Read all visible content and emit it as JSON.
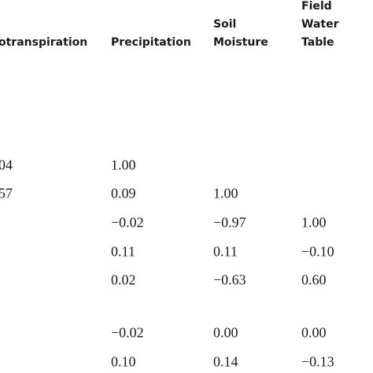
{
  "table": {
    "headers": [
      [
        "otranspiration"
      ],
      [
        "Precipitation"
      ],
      [
        "Soil",
        "Moisture"
      ],
      [
        "Field",
        "Water",
        "Table"
      ]
    ],
    "rows": [
      [
        "04",
        "1.00",
        null,
        null
      ],
      [
        "57",
        "0.09",
        "1.00",
        null
      ],
      [
        null,
        "−0.02",
        "−0.97",
        "1.00"
      ],
      [
        null,
        "0.11",
        "0.11",
        "−0.10"
      ],
      [
        null,
        "0.02",
        "−0.63",
        "0.60"
      ],
      [
        null,
        "−0.02",
        "0.00",
        "0.00"
      ],
      [
        null,
        "0.10",
        "0.14",
        "−0.13"
      ]
    ]
  }
}
